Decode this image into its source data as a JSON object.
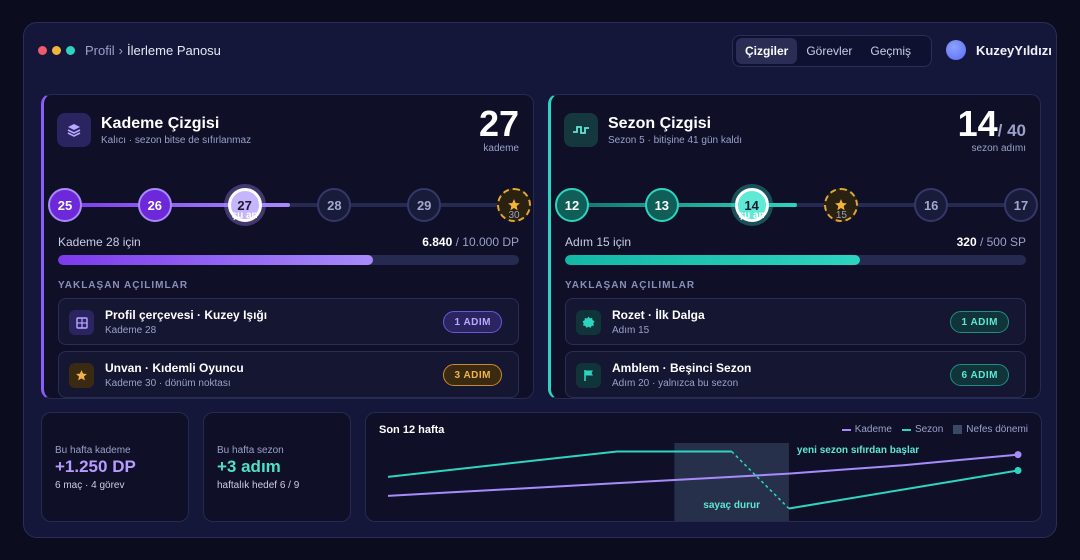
{
  "breadcrumb": {
    "parent": "Profil",
    "separator": "›",
    "current": "İlerleme Panosu"
  },
  "tabs": [
    {
      "label": "Çizgiler",
      "active": true
    },
    {
      "label": "Görevler",
      "active": false
    },
    {
      "label": "Geçmiş",
      "active": false
    }
  ],
  "user": {
    "name": "KuzeyYıldızı"
  },
  "colors": {
    "purple": "#8b5cf6",
    "teal": "#2dd4bf",
    "amber": "#e0a63a",
    "nefes": "#3a4a66"
  },
  "tier": {
    "icon": "layers-icon",
    "title": "Kademe Çizgisi",
    "subtitle": "Kalıcı · sezon bitse de sıfırlanmaz",
    "current": "27",
    "current_label": "kademe",
    "nodes": [
      {
        "label": "25",
        "state": "done"
      },
      {
        "label": "26",
        "state": "done"
      },
      {
        "label": "27",
        "state": "current"
      },
      {
        "label": "28",
        "state": "todo"
      },
      {
        "label": "29",
        "state": "todo"
      },
      {
        "label": "",
        "state": "star",
        "caption": "30"
      }
    ],
    "now_label": "şu an",
    "track_fill_fraction": 0.5,
    "progress_label": "Kademe 28 için",
    "progress_current": "6.840",
    "progress_total": "/ 10.000 DP",
    "progress_fraction": 0.684,
    "section_title": "YAKLAŞAN AÇILIMLAR",
    "unlocks": [
      {
        "icon": "frame-icon",
        "title": "Profil çerçevesi · Kuzey Işığı",
        "sub": "Kademe 28",
        "badge": "1 ADIM",
        "badge_color": "purple"
      },
      {
        "icon": "star-icon",
        "title": "Unvan · Kıdemli Oyuncu",
        "sub": "Kademe 30 · dönüm noktası",
        "badge": "3 ADIM",
        "badge_color": "amber"
      }
    ]
  },
  "season": {
    "icon": "pulse-icon",
    "title": "Sezon Çizgisi",
    "subtitle": "Sezon 5 · bitişine 41 gün kaldı",
    "current": "14",
    "total": "/ 40",
    "current_label": "sezon adımı",
    "nodes": [
      {
        "label": "12",
        "state": "done"
      },
      {
        "label": "13",
        "state": "done"
      },
      {
        "label": "14",
        "state": "current"
      },
      {
        "label": "",
        "state": "star",
        "caption": "15"
      },
      {
        "label": "16",
        "state": "todo"
      },
      {
        "label": "17",
        "state": "todo"
      }
    ],
    "now_label": "şu an",
    "track_fill_fraction": 0.5,
    "progress_label": "Adım 15 için",
    "progress_current": "320",
    "progress_total": "/ 500 SP",
    "progress_fraction": 0.64,
    "section_title": "YAKLAŞAN AÇILIMLAR",
    "unlocks": [
      {
        "icon": "badge-icon",
        "title": "Rozet · İlk Dalga",
        "sub": "Adım 15",
        "badge": "1 ADIM",
        "badge_color": "teal"
      },
      {
        "icon": "flag-icon",
        "title": "Amblem · Beşinci Sezon",
        "sub": "Adım 20 · yalnızca bu sezon",
        "badge": "6 ADIM",
        "badge_color": "teal"
      }
    ]
  },
  "stats": [
    {
      "label": "Bu hafta kademe",
      "value": "+1.250 DP",
      "note": "6 maç · 4 görev",
      "color": "#b79cff"
    },
    {
      "label": "Bu hafta sezon",
      "value": "+3 adım",
      "note": "haftalık hedef 6 / 9",
      "color": "#4fe0c8"
    }
  ],
  "chart": {
    "title": "Son 12 hafta",
    "legend": [
      "Kademe",
      "Sezon",
      "Nefes dönemi"
    ],
    "annotation_pause": "sayaç durur",
    "annotation_reset": "yeni sezon sıfırdan başlar"
  },
  "chart_data": {
    "type": "line",
    "title": "Son 12 hafta",
    "x": [
      1,
      2,
      3,
      4,
      5,
      6,
      7,
      8,
      9,
      10,
      11,
      12
    ],
    "series": [
      {
        "name": "Kademe",
        "color": "#a78bfa",
        "values": [
          1,
          1.15,
          1.3,
          1.45,
          1.6,
          1.75,
          1.9,
          2.05,
          2.25,
          2.45,
          2.7,
          2.95
        ]
      },
      {
        "name": "Sezon",
        "color": "#2dd4bf",
        "values": [
          1.9,
          2.2,
          2.5,
          2.8,
          3.1,
          3.1,
          3.1,
          0.4,
          0.85,
          1.3,
          1.75,
          2.2
        ]
      }
    ],
    "shaded_range": {
      "label": "Nefes dönemi",
      "from": 6,
      "to": 8
    },
    "ylim": [
      0,
      3.5
    ]
  }
}
